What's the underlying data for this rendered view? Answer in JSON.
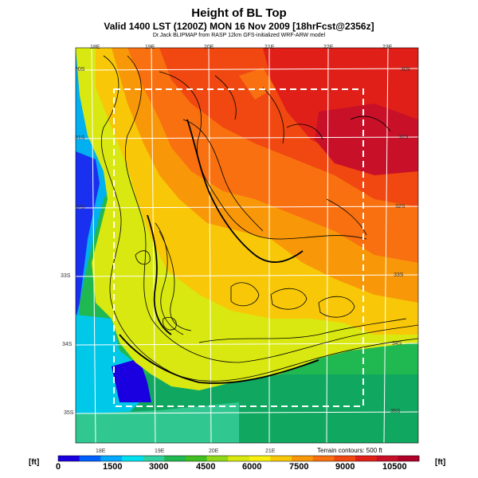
{
  "header": {
    "title": "Height of BL Top",
    "subtitle": "Valid 1400 LST (1200Z) MON 16 Nov 2009 [18hrFcst@2356z]",
    "credit": "Dr.Jack BLIPMAP from RASP 12km GFS-initialized WRF-ARW model"
  },
  "map": {
    "lon_labels_top": [
      "18E",
      "19E",
      "20E",
      "21E",
      "22E",
      "23E"
    ],
    "lon_labels_bottom": [
      "18E",
      "19E",
      "20E",
      "21E"
    ],
    "lat_labels_left": [
      "30S",
      "31S",
      "32S",
      "33S",
      "34S",
      "35S"
    ],
    "lat_labels_right": [
      "30S",
      "31S",
      "32S",
      "33S",
      "34S",
      "35S"
    ],
    "terrain_note": "Terrain contours: 500 ft"
  },
  "colorbar": {
    "unit_left": "[ft]",
    "unit_right": "[ft]",
    "ticks": [
      "0",
      "1500",
      "3000",
      "4500",
      "6000",
      "7500",
      "9000",
      "10500"
    ],
    "colors": [
      "#1a00e0",
      "#0060ff",
      "#00a8ff",
      "#00e0f0",
      "#30d0a0",
      "#20b850",
      "#40c020",
      "#90d818",
      "#d8e810",
      "#f8f010",
      "#f8c808",
      "#f89808",
      "#f87010",
      "#f04810",
      "#e02018",
      "#c81028",
      "#b00028"
    ]
  }
}
